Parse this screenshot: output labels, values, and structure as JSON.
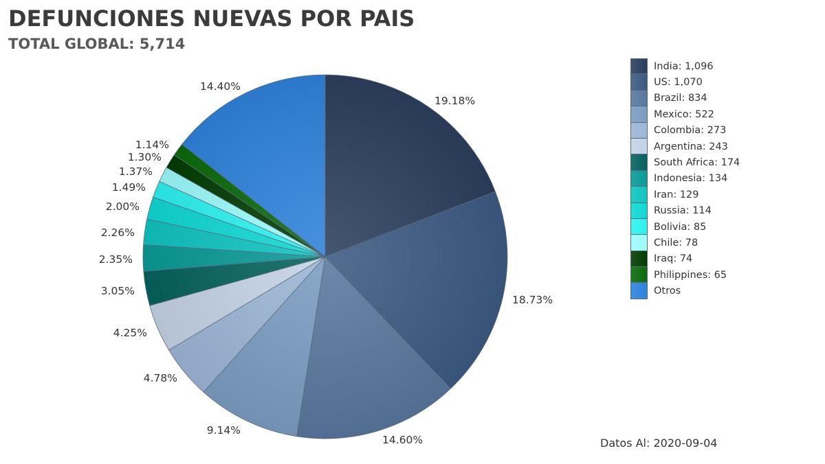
{
  "chart_data": {
    "type": "pie",
    "title": "DEFUNCIONES NUEVAS POR PAIS",
    "subtitle": "TOTAL GLOBAL: 5,714",
    "legend_position": "right",
    "slices": [
      {
        "name": "India",
        "value": 1096,
        "legend_label": "India:  1,096",
        "pct_label": "19.18%",
        "color": "#2b3f5c"
      },
      {
        "name": "US",
        "value": 1070,
        "legend_label": "US:  1,070",
        "pct_label": "18.73%",
        "color": "#3d5a82"
      },
      {
        "name": "Brazil",
        "value": 834,
        "legend_label": "Brazil:  834",
        "pct_label": "14.60%",
        "color": "#58789e"
      },
      {
        "name": "Mexico",
        "value": 522,
        "legend_label": "Mexico:  522",
        "pct_label": "9.14%",
        "color": "#7b9cc2"
      },
      {
        "name": "Colombia",
        "value": 273,
        "legend_label": "Colombia:  273",
        "pct_label": "4.78%",
        "color": "#9cb6d6"
      },
      {
        "name": "Argentina",
        "value": 243,
        "legend_label": "Argentina:  243",
        "pct_label": "4.25%",
        "color": "#c4d3e6"
      },
      {
        "name": "South Africa",
        "value": 174,
        "legend_label": "South Africa:  174",
        "pct_label": "3.05%",
        "color": "#06625e"
      },
      {
        "name": "Indonesia",
        "value": 134,
        "legend_label": "Indonesia:  134",
        "pct_label": "2.35%",
        "color": "#0a9a96"
      },
      {
        "name": "Iran",
        "value": 129,
        "legend_label": "Iran:  129",
        "pct_label": "2.26%",
        "color": "#0fc4c0"
      },
      {
        "name": "Russia",
        "value": 114,
        "legend_label": "Russia:  114",
        "pct_label": "2.00%",
        "color": "#10d8d4"
      },
      {
        "name": "Bolivia",
        "value": 85,
        "legend_label": "Bolivia:  85",
        "pct_label": "1.49%",
        "color": "#2ef2f0"
      },
      {
        "name": "Chile",
        "value": 78,
        "legend_label": "Chile:  78",
        "pct_label": "1.37%",
        "color": "#9cfbfb"
      },
      {
        "name": "Iraq",
        "value": 74,
        "legend_label": "Iraq:  74",
        "pct_label": "1.30%",
        "color": "#033d03"
      },
      {
        "name": "Philippines",
        "value": 65,
        "legend_label": "Philippines:  65",
        "pct_label": "1.14%",
        "color": "#0b6b0b"
      },
      {
        "name": "Otros",
        "value": 823,
        "legend_label": "Otros",
        "pct_label": "14.40%",
        "color": "#2f82dc"
      }
    ]
  },
  "footer": {
    "note": "Datos Al: 2020-09-04"
  }
}
